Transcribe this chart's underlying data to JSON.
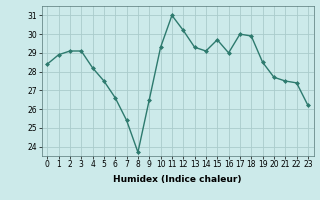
{
  "x": [
    0,
    1,
    2,
    3,
    4,
    5,
    6,
    7,
    8,
    9,
    10,
    11,
    12,
    13,
    14,
    15,
    16,
    17,
    18,
    19,
    20,
    21,
    22,
    23
  ],
  "y": [
    28.4,
    28.9,
    29.1,
    29.1,
    28.2,
    27.5,
    26.6,
    25.4,
    23.7,
    26.5,
    29.3,
    31.0,
    30.2,
    29.3,
    29.1,
    29.7,
    29.0,
    30.0,
    29.9,
    28.5,
    27.7,
    27.5,
    27.4,
    26.2
  ],
  "line_color": "#2d7a6e",
  "bg_color": "#cceaea",
  "grid_color": "#aacccc",
  "xlabel": "Humidex (Indice chaleur)",
  "ylim": [
    23.5,
    31.5
  ],
  "yticks": [
    24,
    25,
    26,
    27,
    28,
    29,
    30,
    31
  ],
  "xticks": [
    0,
    1,
    2,
    3,
    4,
    5,
    6,
    7,
    8,
    9,
    10,
    11,
    12,
    13,
    14,
    15,
    16,
    17,
    18,
    19,
    20,
    21,
    22,
    23
  ],
  "marker": "D",
  "markersize": 2.0,
  "linewidth": 1.0,
  "xlabel_fontsize": 6.5,
  "tick_fontsize": 5.5
}
